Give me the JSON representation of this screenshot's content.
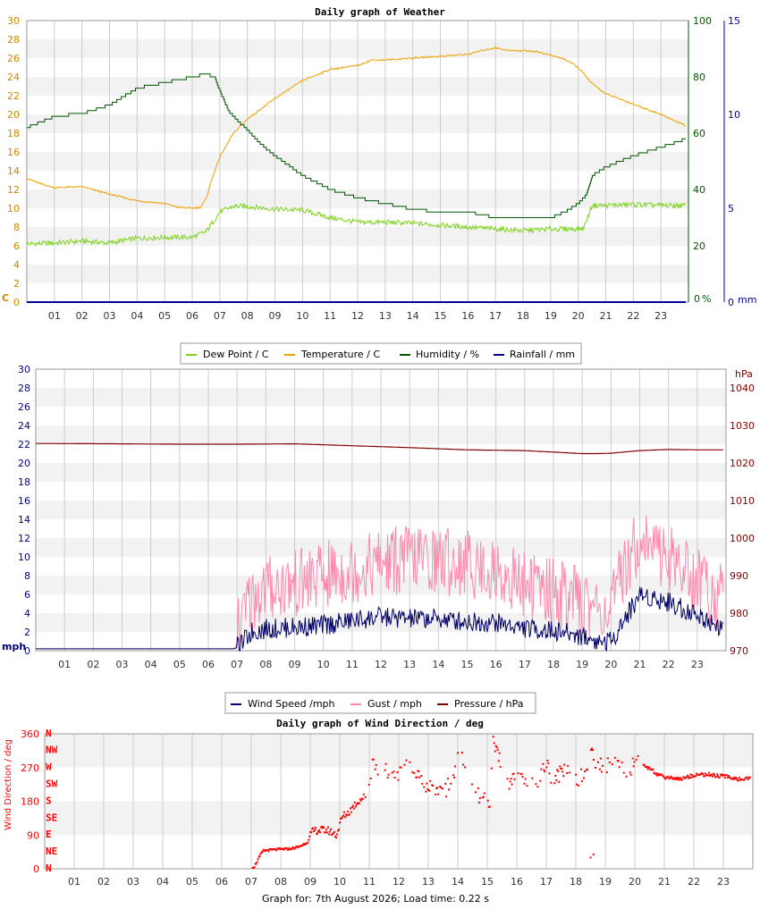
{
  "colors": {
    "dew": "#7ed321",
    "temp": "#f0a000",
    "hum": "#005500",
    "rain": "#000099",
    "wind": "#000066",
    "gust": "#ff88aa",
    "press": "#800000",
    "dir": "#ff0000",
    "band": "#f2f2f2",
    "grid": "#cccccc",
    "axis_left": "#cc8800",
    "axis_mph": "#000080"
  },
  "hours": [
    "01",
    "02",
    "03",
    "04",
    "05",
    "06",
    "07",
    "08",
    "09",
    "10",
    "11",
    "12",
    "13",
    "14",
    "15",
    "16",
    "17",
    "18",
    "19",
    "20",
    "21",
    "22",
    "23"
  ],
  "footer": "Graph for: 7th August 2026; Load time: 0.22 s",
  "chart_data": [
    {
      "type": "line",
      "title": "Daily graph of Weather",
      "x_unit": "hour of day",
      "y_left": {
        "unit": "C",
        "ticks": [
          "0",
          "2",
          "4",
          "6",
          "8",
          "10",
          "12",
          "14",
          "16",
          "18",
          "20",
          "22",
          "24",
          "26",
          "28",
          "30"
        ],
        "ylim": [
          0,
          30
        ]
      },
      "y_right_humidity": {
        "unit": "%",
        "ticks": [
          "0",
          "20",
          "40",
          "60",
          "80",
          "100"
        ],
        "ylim": [
          0,
          100
        ]
      },
      "y_right_rain": {
        "unit": "mm",
        "ticks": [
          "0",
          "5",
          "10",
          "15"
        ],
        "ylim": [
          0,
          15
        ]
      },
      "legend": [
        "Dew Point / C",
        "Temperature / C",
        "Humidity / %",
        "Rainfall / mm"
      ],
      "series": [
        {
          "name": "Temperature / C",
          "axis": "left",
          "x": [
            0,
            0.5,
            1,
            2,
            3,
            4,
            5,
            5.5,
            6,
            6.3,
            6.5,
            6.7,
            7,
            7.5,
            8,
            9,
            10,
            11,
            12,
            12.5,
            13,
            14,
            15,
            16,
            16.5,
            17,
            17.5,
            18,
            18.5,
            19,
            19.5,
            20,
            20.5,
            21,
            22,
            23,
            23.9
          ],
          "values": [
            13.2,
            12.6,
            12.2,
            12.3,
            11.5,
            10.8,
            10.5,
            10.1,
            10.0,
            10.1,
            11,
            13,
            15.5,
            18,
            19.5,
            21.7,
            23.6,
            24.8,
            25.2,
            25.8,
            25.8,
            26.0,
            26.2,
            26.4,
            26.8,
            27.1,
            26.8,
            26.8,
            26.7,
            26.3,
            25.9,
            25.0,
            23.3,
            22.2,
            21.1,
            20.0,
            18.8
          ]
        },
        {
          "name": "Dew Point / C",
          "axis": "left",
          "x": [
            0,
            1,
            2,
            3,
            4,
            5,
            6,
            6.5,
            7,
            7.5,
            8,
            9,
            10,
            11,
            12,
            13,
            14,
            15,
            16,
            17,
            18,
            19,
            19.5,
            20,
            20.2,
            20.5,
            21,
            22,
            23,
            23.9
          ],
          "values": [
            6.2,
            6.3,
            6.5,
            6.3,
            6.8,
            6.9,
            6.9,
            7.5,
            9.6,
            10.2,
            10.2,
            9.9,
            9.8,
            9.0,
            8.5,
            8.5,
            8.4,
            8.2,
            8.0,
            7.8,
            7.6,
            7.8,
            7.8,
            7.8,
            7.9,
            10.3,
            10.3,
            10.4,
            10.3,
            10.3
          ]
        },
        {
          "name": "Humidity / %",
          "axis": "humidity",
          "x": [
            0,
            1,
            2,
            3,
            4,
            5,
            6,
            6.5,
            6.8,
            7,
            7.3,
            8,
            8.5,
            9,
            10,
            11,
            12,
            13,
            14,
            15,
            16,
            16.5,
            17,
            18,
            19,
            19.5,
            20,
            20.3,
            20.5,
            21,
            22,
            23,
            23.9
          ],
          "values": [
            62,
            66,
            67,
            70,
            76,
            78,
            80,
            81,
            80,
            75,
            68,
            61,
            56,
            52,
            45,
            40,
            37,
            35,
            33,
            32,
            32,
            31,
            30,
            30,
            30,
            32,
            35,
            38,
            45,
            48,
            52,
            55,
            58
          ]
        },
        {
          "name": "Rainfall / mm",
          "axis": "rain",
          "x": [
            0,
            23.9
          ],
          "values": [
            0,
            0
          ]
        }
      ]
    },
    {
      "type": "line",
      "title": "",
      "x_unit": "hour of day",
      "y_left": {
        "unit": "mph",
        "ticks": [
          "0",
          "2",
          "4",
          "6",
          "8",
          "10",
          "12",
          "14",
          "16",
          "18",
          "20",
          "22",
          "24",
          "26",
          "28",
          "30"
        ],
        "ylim": [
          0,
          30
        ]
      },
      "y_right": {
        "unit": "hPa",
        "ticks": [
          "970",
          "980",
          "990",
          "1000",
          "1010",
          "1020",
          "1030",
          "1040"
        ],
        "ylim": [
          970,
          1045
        ]
      },
      "legend": [
        "Wind Speed /mph",
        "Gust / mph",
        "Pressure / hPa"
      ],
      "series": [
        {
          "name": "Wind Speed /mph",
          "axis": "left",
          "x": [
            0,
            6.9,
            7.1,
            7.5,
            8,
            9,
            10,
            11,
            12,
            13,
            14,
            15,
            16,
            17,
            18,
            19,
            19.5,
            20,
            20.5,
            21,
            22,
            23,
            23.9
          ],
          "values": [
            0.2,
            0.2,
            0.5,
            2.0,
            2.3,
            2.5,
            2.7,
            3.2,
            3.6,
            3.4,
            3.4,
            3.1,
            3.0,
            2.4,
            2.1,
            1.6,
            1.0,
            1.0,
            3.5,
            6.0,
            5.2,
            3.8,
            2.5
          ]
        },
        {
          "name": "Gust / mph",
          "axis": "left",
          "x": [
            0,
            6.9,
            7.1,
            7.5,
            8,
            9,
            10,
            11,
            12,
            13,
            14,
            15,
            16,
            17,
            18,
            19,
            19.5,
            20,
            20.5,
            21,
            22,
            23,
            23.9
          ],
          "values": [
            0.2,
            0.2,
            1.5,
            4.5,
            5.5,
            6.0,
            6.8,
            7.5,
            8.2,
            8.8,
            8.5,
            8.2,
            7.2,
            6.0,
            5.2,
            4.0,
            3.5,
            3.0,
            8.0,
            11.0,
            8.8,
            6.5,
            4.5
          ]
        },
        {
          "name": "Pressure / hPa",
          "axis": "right",
          "x": [
            0,
            3,
            5,
            7,
            9,
            11,
            13,
            15,
            17,
            18,
            19,
            19.5,
            20,
            21,
            22,
            23,
            23.9
          ],
          "values": [
            1025.2,
            1025.1,
            1025.0,
            1025.0,
            1025.1,
            1024.6,
            1024.1,
            1023.5,
            1023.3,
            1022.9,
            1022.5,
            1022.5,
            1022.6,
            1023.3,
            1023.6,
            1023.5,
            1023.5
          ]
        }
      ]
    },
    {
      "type": "scatter",
      "title": "Daily graph of Wind Direction / deg",
      "ylabel": "Wind Direction / deg",
      "y_left": {
        "ticks": [
          "0",
          "90",
          "180",
          "270",
          "360"
        ],
        "ylim": [
          0,
          360
        ]
      },
      "compass": [
        "N",
        "NE",
        "E",
        "SE",
        "S",
        "SW",
        "W",
        "NW",
        "N"
      ],
      "series": [
        {
          "name": "direction",
          "x": [
            7.1,
            7.2,
            7.3,
            7.4,
            7.6,
            7.8,
            8.0,
            8.3,
            8.6,
            8.9,
            9.0,
            9.1,
            9.2,
            9.4,
            9.6,
            9.7,
            9.9,
            10.0,
            10.1,
            10.3,
            10.5,
            10.7,
            10.9,
            11.0,
            11.1,
            11.2,
            11.4,
            11.6,
            11.8,
            12.0,
            12.1,
            12.2,
            12.3,
            12.5,
            12.6,
            12.8,
            13.0,
            13.2,
            13.4,
            13.6,
            13.8,
            14.0,
            14.1,
            14.2,
            14.4,
            14.6,
            14.8,
            15.0,
            15.1,
            15.2,
            15.4,
            15.6,
            15.8,
            16.0,
            16.2,
            16.4,
            16.6,
            16.8,
            17.0,
            17.2,
            17.4,
            17.6,
            17.8,
            18.0,
            18.3,
            18.5,
            18.6,
            18.8,
            19.0,
            19.2,
            19.4,
            19.6,
            19.8,
            20.0,
            20.3,
            20.6,
            20.8,
            21.0,
            21.3,
            21.6,
            22.0,
            22.4,
            22.8,
            23.2,
            23.6,
            23.9
          ],
          "values": [
            5,
            20,
            35,
            48,
            50,
            51,
            52,
            53,
            58,
            70,
            90,
            100,
            102,
            103,
            102,
            98,
            90,
            120,
            140,
            150,
            170,
            185,
            195,
            230,
            290,
            265,
            270,
            255,
            240,
            260,
            280,
            285,
            275,
            260,
            250,
            230,
            220,
            215,
            210,
            205,
            245,
            290,
            295,
            285,
            230,
            200,
            185,
            175,
            190,
            340,
            300,
            260,
            225,
            245,
            230,
            220,
            235,
            245,
            280,
            240,
            250,
            265,
            270,
            240,
            250,
            315,
            290,
            280,
            275,
            285,
            270,
            265,
            250,
            290,
            275,
            265,
            248,
            245,
            242,
            240,
            250,
            252,
            248,
            245,
            238,
            240
          ]
        },
        {
          "name": "direction-low",
          "x": [
            18.5,
            18.6
          ],
          "values": [
            30,
            38
          ]
        }
      ]
    }
  ]
}
